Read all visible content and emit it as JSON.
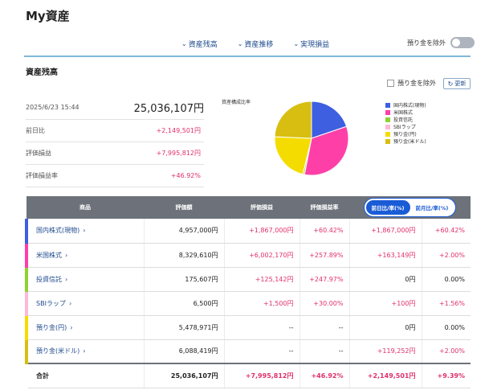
{
  "page": {
    "title": "My資産"
  },
  "nav": {
    "items": [
      {
        "label": "資産残高"
      },
      {
        "label": "資産推移"
      },
      {
        "label": "実現損益"
      }
    ],
    "exclude_deposit_label": "預り金を除外"
  },
  "section": {
    "title": "資産残高"
  },
  "controls": {
    "exclude_checkbox_label": "預り金を除外",
    "refresh_label": "更新"
  },
  "summary": {
    "datetime": "2025/6/23 15:44",
    "total": "25,036,107円",
    "rows": [
      {
        "label": "前日比",
        "value": "+2,149,501円"
      },
      {
        "label": "評価損益",
        "value": "+7,995,812円"
      },
      {
        "label": "評価損益率",
        "value": "+46.92%"
      }
    ]
  },
  "chart_data": {
    "type": "pie",
    "title": "資産構成比率",
    "categories": [
      "国内株式(現物)",
      "米国株式",
      "投資信託",
      "SBIラップ",
      "預り金(円)",
      "預り金(米ドル)"
    ],
    "values": [
      4957000,
      8329610,
      175607,
      6500,
      5478971,
      6088419
    ],
    "colors": [
      "#3d5fe0",
      "#ff3fa8",
      "#8fd232",
      "#ffb8d8",
      "#f5dc00",
      "#d8be10"
    ],
    "legend_position": "right"
  },
  "table": {
    "headers": {
      "name": "商品",
      "value": "評価額",
      "gain": "評価損益",
      "gain_rate": "評価損益率"
    },
    "toggle": {
      "daily": "前日比/率(%)",
      "monthly": "前月比/率(%)"
    },
    "rows": [
      {
        "name": "国内株式(現物)",
        "value": "4,957,000円",
        "gain": "+1,867,000円",
        "gain_rate": "+60.42%",
        "change": "+1,867,000円",
        "change_rate": "+60.42%"
      },
      {
        "name": "米国株式",
        "value": "8,329,610円",
        "gain": "+6,002,170円",
        "gain_rate": "+257.89%",
        "change": "+163,149円",
        "change_rate": "+2.00%"
      },
      {
        "name": "投資信託",
        "value": "175,607円",
        "gain": "+125,142円",
        "gain_rate": "+247.97%",
        "change": "0円",
        "change_rate": "0.00%"
      },
      {
        "name": "SBIラップ",
        "value": "6,500円",
        "gain": "+1,500円",
        "gain_rate": "+30.00%",
        "change": "+100円",
        "change_rate": "+1.56%"
      },
      {
        "name": "預り金(円)",
        "value": "5,478,971円",
        "gain": "--",
        "gain_rate": "--",
        "change": "0円",
        "change_rate": "0.00%"
      },
      {
        "name": "預り金(米ドル)",
        "value": "6,088,419円",
        "gain": "--",
        "gain_rate": "--",
        "change": "+119,252円",
        "change_rate": "+2.00%"
      }
    ],
    "total": {
      "name": "合計",
      "value": "25,036,107円",
      "gain": "+7,995,812円",
      "gain_rate": "+46.92%",
      "change": "+2,149,501円",
      "change_rate": "+9.39%"
    }
  }
}
